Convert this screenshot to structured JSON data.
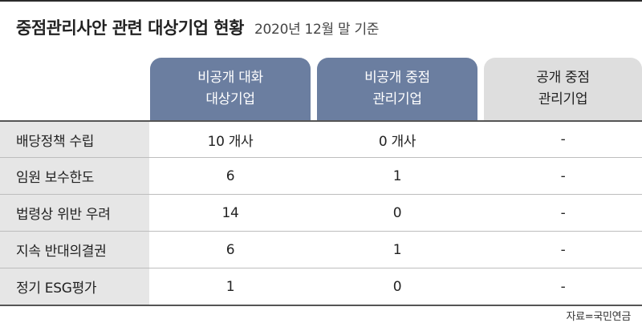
{
  "title": {
    "main": "중점관리사안 관련 대상기업 현황",
    "sub": "2020년 12월 말 기준"
  },
  "columns": [
    {
      "line1": "비공개 대화",
      "line2": "대상기업",
      "style": "highlight"
    },
    {
      "line1": "비공개 중점",
      "line2": "관리기업",
      "style": "highlight"
    },
    {
      "line1": "공개 중점",
      "line2": "관리기업",
      "style": "muted"
    }
  ],
  "rows": [
    {
      "label": "배당정책 수립",
      "values": [
        "10 개사",
        "0 개사",
        "-"
      ]
    },
    {
      "label": "임원 보수한도",
      "values": [
        "6",
        "1",
        "-"
      ]
    },
    {
      "label": "법령상 위반 우려",
      "values": [
        "14",
        "0",
        "-"
      ]
    },
    {
      "label": "지속 반대의결권",
      "values": [
        "6",
        "1",
        "-"
      ]
    },
    {
      "label": "정기 ESG평가",
      "values": [
        "1",
        "0",
        "-"
      ]
    }
  ],
  "source": "자료=국민연금",
  "colors": {
    "header_highlight": "#6b7ea0",
    "header_muted": "#dedede",
    "row_label_bg": "#e6e6e6"
  }
}
